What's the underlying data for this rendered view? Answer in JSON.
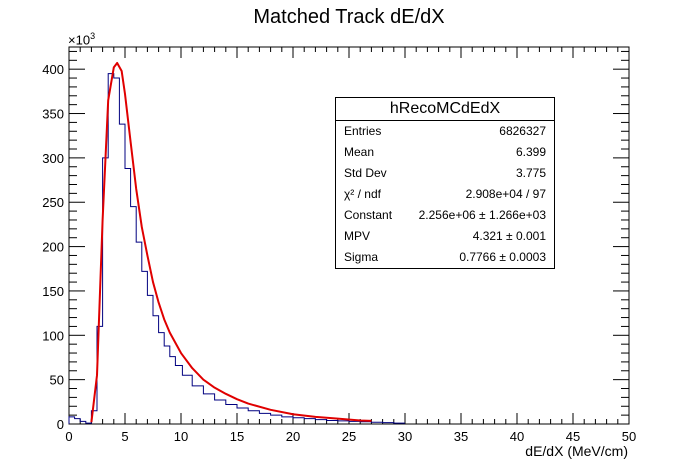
{
  "chart_data": {
    "type": "histogram",
    "title": "Matched Track dE/dX",
    "xlabel": "dE/dX (MeV/cm)",
    "ylabel": "",
    "y_multiplier": "×10",
    "y_multiplier_exp": "3",
    "xlim": [
      0,
      50
    ],
    "ylim": [
      0,
      425
    ],
    "x_ticks": [
      "0",
      "5",
      "10",
      "15",
      "20",
      "25",
      "30",
      "35",
      "40",
      "45",
      "50"
    ],
    "y_ticks": [
      "0",
      "50",
      "100",
      "150",
      "200",
      "250",
      "300",
      "350",
      "400"
    ],
    "grid": false,
    "hist_color": "#000080",
    "fit_color": "#e00000",
    "histogram": {
      "x": [
        0.25,
        0.75,
        1.25,
        1.75,
        2.25,
        2.75,
        3.25,
        3.75,
        4.25,
        4.75,
        5.25,
        5.75,
        6.25,
        6.75,
        7.25,
        7.75,
        8.25,
        8.75,
        9.25,
        9.75,
        10.5,
        11.5,
        12.5,
        13.5,
        14.5,
        15.5,
        16.5,
        17.5,
        18.5,
        19.5,
        20.5,
        21.5,
        22.5,
        23.5,
        24.5,
        25.5,
        26.5,
        27.5,
        28.5,
        29.5
      ],
      "y": [
        8,
        6,
        3,
        1,
        15,
        110,
        300,
        395,
        390,
        338,
        288,
        245,
        205,
        172,
        145,
        122,
        103,
        88,
        76,
        66,
        55,
        43,
        34,
        27,
        22,
        18,
        15,
        12,
        10,
        8,
        7,
        6,
        5,
        4,
        3.5,
        3,
        2.5,
        2,
        1.5,
        1
      ]
    },
    "fit": {
      "x": [
        2.0,
        2.5,
        3.0,
        3.5,
        4.0,
        4.3,
        4.7,
        5.0,
        5.5,
        6.0,
        6.5,
        7.0,
        7.5,
        8.0,
        8.5,
        9.0,
        10.0,
        11.0,
        12.0,
        13.0,
        14.0,
        15.0,
        16.0,
        18.0,
        20.0,
        22.0,
        24.0,
        26.0,
        27.0
      ],
      "y": [
        2,
        55,
        230,
        365,
        402,
        407,
        398,
        372,
        318,
        265,
        222,
        190,
        160,
        137,
        118,
        103,
        80,
        63,
        50,
        41,
        34,
        28,
        23,
        16,
        11,
        8,
        6,
        4,
        3.5
      ]
    },
    "stats": {
      "title": "hRecoMCdEdX",
      "rows": [
        {
          "label": "Entries",
          "value": "6826327"
        },
        {
          "label": "Mean",
          "value": "6.399"
        },
        {
          "label": "Std Dev",
          "value": "3.775"
        },
        {
          "label": "χ² / ndf",
          "value": "2.908e+04 / 97"
        },
        {
          "label": "Constant",
          "value": "2.256e+06 ± 1.266e+03"
        },
        {
          "label": "MPV",
          "value": "4.321 ± 0.001"
        },
        {
          "label": "Sigma",
          "value": "0.7766 ± 0.0003"
        }
      ]
    }
  }
}
